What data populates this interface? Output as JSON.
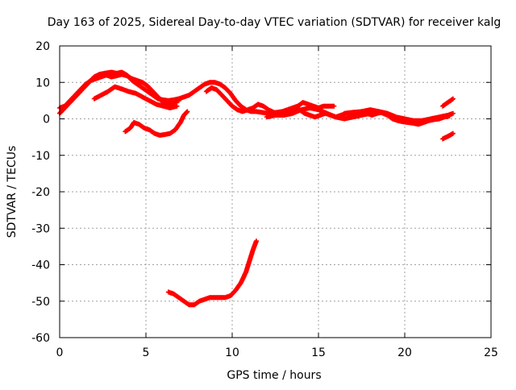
{
  "chart_data": {
    "type": "scatter",
    "title": "Day 163 of 2025, Sidereal Day-to-day VTEC variation (SDTVAR) for receiver kalg",
    "xlabel": "GPS time / hours",
    "ylabel": "SDTVAR / TECUs",
    "xlim": [
      0,
      25
    ],
    "ylim": [
      -60,
      20
    ],
    "xticks": [
      0,
      5,
      10,
      15,
      20,
      25
    ],
    "yticks": [
      -60,
      -50,
      -40,
      -30,
      -20,
      -10,
      0,
      10,
      20
    ],
    "grid": true,
    "marker": "+",
    "color": "#ff0000",
    "series": [
      {
        "name": "arc-1",
        "points": [
          [
            0.0,
            1.5
          ],
          [
            0.2,
            2.5
          ],
          [
            0.4,
            3.5
          ],
          [
            0.6,
            4.5
          ],
          [
            0.8,
            5.5
          ],
          [
            1.0,
            6.5
          ],
          [
            1.2,
            7.5
          ],
          [
            1.4,
            8.5
          ],
          [
            1.6,
            9.5
          ],
          [
            1.8,
            10.5
          ],
          [
            2.0,
            11.5
          ],
          [
            2.3,
            12.2
          ],
          [
            2.6,
            12.5
          ],
          [
            3.0,
            12.8
          ],
          [
            3.3,
            12.5
          ],
          [
            3.6,
            12.8
          ],
          [
            3.9,
            12.0
          ],
          [
            4.2,
            10.5
          ],
          [
            4.5,
            9.5
          ],
          [
            4.8,
            8.5
          ],
          [
            5.1,
            7.5
          ],
          [
            5.4,
            6.5
          ],
          [
            5.7,
            5.5
          ],
          [
            6.0,
            5.2
          ],
          [
            6.3,
            5.0
          ],
          [
            6.6,
            5.2
          ],
          [
            6.9,
            5.5
          ],
          [
            7.2,
            6.0
          ],
          [
            7.5,
            6.5
          ],
          [
            7.8,
            7.5
          ],
          [
            8.1,
            8.5
          ],
          [
            8.4,
            9.5
          ],
          [
            8.7,
            10.0
          ],
          [
            9.0,
            10.0
          ],
          [
            9.3,
            9.5
          ],
          [
            9.6,
            8.5
          ],
          [
            9.9,
            7.0
          ],
          [
            10.2,
            5.0
          ],
          [
            10.5,
            3.5
          ],
          [
            10.8,
            2.5
          ],
          [
            11.1,
            2.0
          ],
          [
            11.4,
            2.0
          ],
          [
            11.7,
            1.8
          ],
          [
            12.0,
            1.5
          ],
          [
            12.3,
            1.5
          ],
          [
            12.6,
            1.8
          ],
          [
            12.9,
            2.0
          ],
          [
            13.2,
            2.5
          ],
          [
            13.5,
            3.0
          ],
          [
            13.8,
            3.5
          ],
          [
            14.1,
            4.5
          ],
          [
            14.4,
            4.0
          ],
          [
            14.7,
            3.5
          ],
          [
            15.0,
            3.0
          ],
          [
            15.3,
            3.5
          ],
          [
            15.6,
            3.5
          ],
          [
            15.9,
            3.5
          ]
        ]
      },
      {
        "name": "arc-2",
        "points": [
          [
            0.0,
            3.0
          ],
          [
            0.3,
            3.5
          ],
          [
            0.6,
            5.0
          ],
          [
            0.9,
            6.5
          ],
          [
            1.2,
            8.0
          ],
          [
            1.5,
            9.5
          ],
          [
            1.8,
            10.5
          ],
          [
            2.1,
            11.0
          ],
          [
            2.4,
            11.5
          ],
          [
            2.7,
            12.0
          ],
          [
            3.0,
            11.5
          ],
          [
            3.3,
            11.8
          ],
          [
            3.6,
            12.2
          ],
          [
            3.9,
            11.8
          ],
          [
            4.2,
            11.0
          ],
          [
            4.5,
            10.5
          ],
          [
            4.8,
            10.0
          ],
          [
            5.1,
            9.0
          ],
          [
            5.4,
            7.5
          ],
          [
            5.7,
            6.0
          ],
          [
            6.0,
            4.5
          ],
          [
            6.3,
            4.0
          ],
          [
            6.6,
            4.5
          ],
          [
            6.9,
            5.0
          ]
        ]
      },
      {
        "name": "arc-3",
        "points": [
          [
            2.0,
            5.5
          ],
          [
            2.4,
            6.5
          ],
          [
            2.8,
            7.5
          ],
          [
            3.2,
            8.8
          ],
          [
            3.6,
            8.2
          ],
          [
            4.0,
            7.5
          ],
          [
            4.4,
            7.0
          ],
          [
            4.8,
            6.0
          ],
          [
            5.2,
            5.0
          ],
          [
            5.6,
            4.0
          ],
          [
            6.0,
            3.5
          ],
          [
            6.4,
            3.0
          ],
          [
            6.8,
            3.5
          ]
        ]
      },
      {
        "name": "arc-4",
        "points": [
          [
            3.8,
            -3.5
          ],
          [
            4.1,
            -2.5
          ],
          [
            4.3,
            -1.0
          ],
          [
            4.6,
            -1.5
          ],
          [
            4.9,
            -2.5
          ],
          [
            5.2,
            -3.0
          ],
          [
            5.5,
            -4.0
          ],
          [
            5.8,
            -4.5
          ],
          [
            6.1,
            -4.3
          ],
          [
            6.4,
            -4.0
          ],
          [
            6.7,
            -3.0
          ],
          [
            7.0,
            -1.0
          ],
          [
            7.2,
            1.0
          ],
          [
            7.4,
            2.0
          ]
        ]
      },
      {
        "name": "arc-5",
        "points": [
          [
            6.3,
            -47.5
          ],
          [
            6.6,
            -48.0
          ],
          [
            6.9,
            -49.0
          ],
          [
            7.2,
            -50.0
          ],
          [
            7.5,
            -51.0
          ],
          [
            7.8,
            -51.0
          ],
          [
            8.1,
            -50.0
          ],
          [
            8.4,
            -49.5
          ],
          [
            8.7,
            -49.0
          ],
          [
            9.0,
            -49.0
          ],
          [
            9.3,
            -49.0
          ],
          [
            9.6,
            -49.0
          ],
          [
            9.9,
            -48.5
          ],
          [
            10.2,
            -47.0
          ],
          [
            10.5,
            -45.0
          ],
          [
            10.8,
            -42.0
          ],
          [
            11.0,
            -39.0
          ],
          [
            11.2,
            -36.0
          ],
          [
            11.4,
            -33.5
          ]
        ]
      },
      {
        "name": "arc-6",
        "points": [
          [
            8.5,
            7.5
          ],
          [
            8.8,
            8.5
          ],
          [
            9.1,
            8.0
          ],
          [
            9.4,
            6.5
          ],
          [
            9.7,
            5.0
          ],
          [
            10.0,
            3.5
          ],
          [
            10.3,
            2.5
          ],
          [
            10.6,
            2.0
          ],
          [
            10.9,
            2.5
          ],
          [
            11.2,
            3.0
          ],
          [
            11.5,
            4.0
          ],
          [
            11.8,
            3.5
          ],
          [
            12.1,
            2.5
          ],
          [
            12.4,
            1.8
          ],
          [
            12.7,
            1.5
          ],
          [
            13.0,
            2.0
          ],
          [
            13.3,
            1.5
          ],
          [
            13.6,
            2.0
          ],
          [
            13.9,
            2.5
          ],
          [
            14.2,
            1.5
          ],
          [
            14.5,
            1.0
          ],
          [
            14.8,
            0.5
          ],
          [
            15.1,
            1.0
          ],
          [
            15.4,
            1.5
          ],
          [
            15.7,
            1.0
          ],
          [
            16.0,
            0.5
          ],
          [
            16.3,
            1.0
          ],
          [
            16.6,
            1.5
          ],
          [
            16.9,
            1.2
          ],
          [
            17.2,
            1.5
          ],
          [
            17.5,
            2.0
          ],
          [
            17.8,
            1.5
          ],
          [
            18.1,
            1.0
          ],
          [
            18.4,
            1.5
          ],
          [
            18.7,
            1.8
          ]
        ]
      },
      {
        "name": "arc-7",
        "points": [
          [
            12.0,
            0.5
          ],
          [
            12.5,
            1.0
          ],
          [
            13.0,
            1.0
          ],
          [
            13.5,
            1.5
          ],
          [
            14.0,
            2.5
          ],
          [
            14.5,
            3.0
          ],
          [
            15.0,
            2.5
          ],
          [
            15.5,
            1.5
          ],
          [
            16.0,
            0.5
          ],
          [
            16.5,
            0.0
          ],
          [
            17.0,
            0.5
          ],
          [
            17.5,
            1.0
          ],
          [
            18.0,
            1.5
          ],
          [
            18.5,
            2.0
          ],
          [
            19.0,
            1.5
          ],
          [
            19.5,
            0.5
          ],
          [
            20.0,
            0.0
          ],
          [
            20.5,
            -0.5
          ],
          [
            21.0,
            -0.5
          ],
          [
            21.5,
            0.0
          ],
          [
            22.0,
            0.5
          ],
          [
            22.5,
            1.0
          ],
          [
            22.8,
            1.5
          ]
        ]
      },
      {
        "name": "arc-8",
        "points": [
          [
            16.5,
            1.5
          ],
          [
            17.0,
            1.8
          ],
          [
            17.5,
            2.0
          ],
          [
            18.0,
            2.5
          ],
          [
            18.5,
            2.0
          ],
          [
            19.0,
            1.0
          ],
          [
            19.3,
            0.0
          ],
          [
            19.6,
            -0.5
          ],
          [
            19.9,
            -0.8
          ],
          [
            20.2,
            -1.0
          ],
          [
            20.5,
            -1.2
          ],
          [
            20.8,
            -1.5
          ],
          [
            21.1,
            -1.0
          ],
          [
            21.4,
            -0.5
          ],
          [
            21.7,
            -0.2
          ],
          [
            22.0,
            0.0
          ],
          [
            22.3,
            0.5
          ],
          [
            22.6,
            0.8
          ]
        ]
      },
      {
        "name": "arc-9",
        "points": [
          [
            22.2,
            3.5
          ],
          [
            22.5,
            4.5
          ],
          [
            22.8,
            5.5
          ]
        ]
      },
      {
        "name": "arc-10",
        "points": [
          [
            22.2,
            -5.5
          ],
          [
            22.5,
            -4.8
          ],
          [
            22.8,
            -4.0
          ]
        ]
      }
    ]
  }
}
